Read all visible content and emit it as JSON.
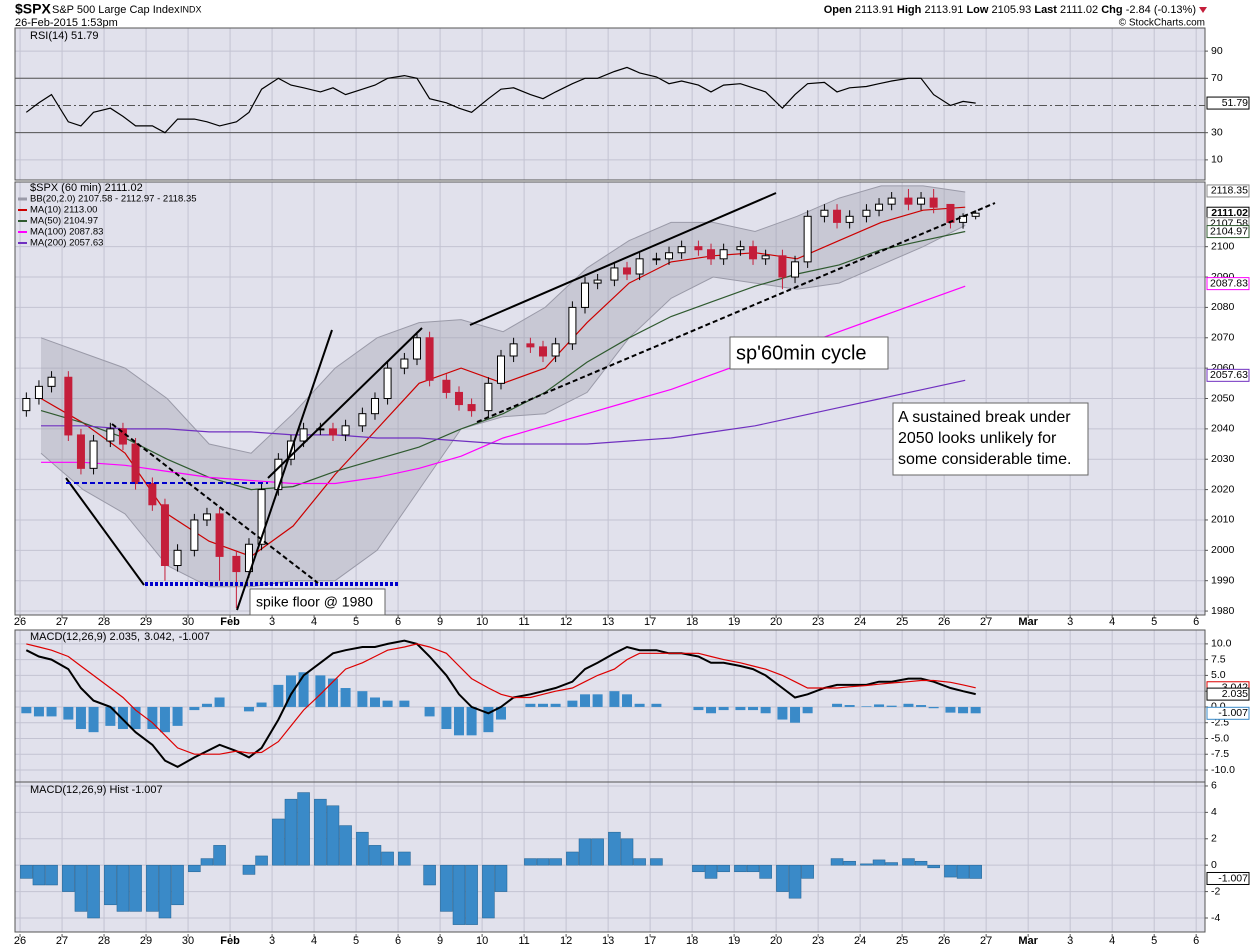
{
  "header": {
    "symbol": "$SPX",
    "name": "S&P 500 Large Cap Index",
    "exchange": "INDX",
    "datetime": "26-Feb-2015 1:53pm",
    "quote": [
      [
        "Open",
        "2113.91"
      ],
      [
        "High",
        "2113.91"
      ],
      [
        "Low",
        "2105.93"
      ],
      [
        "Last",
        "2111.02"
      ],
      [
        "Chg",
        "-2.84 (-0.13%)"
      ]
    ],
    "credit": "© StockCharts.com"
  },
  "chart_data": {
    "type": "candlestick",
    "xlim": [
      -0.12,
      28.21
    ],
    "xticks": [
      {
        "value": 0,
        "label": "26"
      },
      {
        "value": 1,
        "label": "27"
      },
      {
        "value": 2,
        "label": "28"
      },
      {
        "value": 3,
        "label": "29"
      },
      {
        "value": 4,
        "label": "30"
      },
      {
        "value": 5,
        "label": "Feb"
      },
      {
        "value": 6,
        "label": "3"
      },
      {
        "value": 7,
        "label": "4"
      },
      {
        "value": 8,
        "label": "5"
      },
      {
        "value": 9,
        "label": "6"
      },
      {
        "value": 10,
        "label": "9"
      },
      {
        "value": 11,
        "label": "10"
      },
      {
        "value": 12,
        "label": "11"
      },
      {
        "value": 13,
        "label": "12"
      },
      {
        "value": 14,
        "label": "13"
      },
      {
        "value": 15,
        "label": "17"
      },
      {
        "value": 16,
        "label": "18"
      },
      {
        "value": 17,
        "label": "19"
      },
      {
        "value": 18,
        "label": "20"
      },
      {
        "value": 19,
        "label": "23"
      },
      {
        "value": 20,
        "label": "24"
      },
      {
        "value": 21,
        "label": "25"
      },
      {
        "value": 22,
        "label": "26"
      },
      {
        "value": 23,
        "label": "27"
      },
      {
        "value": 24,
        "label": "Mar"
      },
      {
        "value": 25,
        "label": "3"
      },
      {
        "value": 26,
        "label": "4"
      },
      {
        "value": 27,
        "label": "5"
      },
      {
        "value": 28,
        "label": "6"
      }
    ],
    "x": [
      0.15,
      0.45,
      0.75,
      1.15,
      1.45,
      1.75,
      2.15,
      2.45,
      2.75,
      3.15,
      3.45,
      3.75,
      4.15,
      4.45,
      4.75,
      5.15,
      5.45,
      5.75,
      6.15,
      6.45,
      6.75,
      7.15,
      7.45,
      7.75,
      8.15,
      8.45,
      8.75,
      9.15,
      9.45,
      9.75,
      10.15,
      10.45,
      10.75,
      11.15,
      11.45,
      11.75,
      12.15,
      12.45,
      12.75,
      13.15,
      13.45,
      13.75,
      14.15,
      14.45,
      14.75,
      15.15,
      15.45,
      15.75,
      16.15,
      16.45,
      16.75,
      17.15,
      17.45,
      17.75,
      18.15,
      18.45,
      18.75,
      19.15,
      19.45,
      19.75,
      20.15,
      20.45,
      20.75,
      21.15,
      21.45,
      21.75,
      22.15,
      22.45,
      22.75
    ],
    "panels": [
      {
        "type": "line",
        "title": "RSI(14) 51.79",
        "ylim": [
          -4.8,
          107
        ],
        "yticks": [
          10,
          30,
          70,
          90
        ],
        "ref_lines": [
          30,
          70
        ],
        "mid_line": 50,
        "value_box": 51.79,
        "series": [
          {
            "color": "#000000",
            "values": [
              45,
              52,
              58,
              38,
              35,
              45,
              48,
              42,
              35,
              35,
              30,
              40,
              40,
              38,
              35,
              38,
              45,
              62,
              70,
              65,
              63,
              60,
              63,
              58,
              62,
              65,
              70,
              72,
              70,
              55,
              52,
              48,
              45,
              55,
              62,
              63,
              58,
              55,
              60,
              66,
              70,
              70,
              75,
              78,
              74,
              71,
              66,
              68,
              65,
              60,
              65,
              66,
              63,
              60,
              48,
              58,
              66,
              67,
              60,
              63,
              64,
              66,
              68,
              70,
              70,
              58,
              50,
              53,
              51.79
            ]
          }
        ]
      },
      {
        "type": "candlestick",
        "title": "$SPX (60 min) 2111.02",
        "ylim": [
          1978.7,
          2121.3
        ],
        "yticks": [
          1980,
          1990,
          2000,
          2010,
          2020,
          2030,
          2040,
          2050,
          2060,
          2070,
          2080,
          2090,
          2100
        ],
        "up_color": "#000000",
        "down_color": "#c41e3a",
        "open": [
          2046,
          2050,
          2054,
          2057,
          2038,
          2027,
          2036,
          2040,
          2035,
          2022,
          2015,
          1995,
          2000,
          2010,
          2012,
          1998,
          1993,
          2002,
          2020,
          2030,
          2036,
          2040,
          2040,
          2038,
          2041,
          2045,
          2050,
          2060,
          2063,
          2070,
          2056,
          2052,
          2048,
          2046,
          2055,
          2064,
          2068,
          2067,
          2064,
          2068,
          2080,
          2088,
          2089,
          2093,
          2091,
          2096,
          2096,
          2098,
          2100,
          2099,
          2096,
          2099,
          2100,
          2096,
          2097,
          2090,
          2095,
          2110,
          2112,
          2108,
          2110,
          2112,
          2114,
          2116,
          2114,
          2116,
          2113.91,
          2108,
          2110
        ],
        "high": [
          2052,
          2056,
          2059,
          2059,
          2040,
          2038,
          2042,
          2042,
          2037,
          2024,
          2017,
          2002,
          2012,
          2014,
          2014,
          2000,
          2004,
          2022,
          2032,
          2038,
          2042,
          2042,
          2042,
          2043,
          2047,
          2052,
          2062,
          2065,
          2072,
          2072,
          2058,
          2054,
          2050,
          2057,
          2066,
          2070,
          2070,
          2069,
          2070,
          2082,
          2090,
          2091,
          2095,
          2095,
          2098,
          2098,
          2100,
          2102,
          2102,
          2101,
          2101,
          2102,
          2102,
          2099,
          2099,
          2097,
          2112,
          2114,
          2114,
          2112,
          2114,
          2116,
          2118,
          2119,
          2118,
          2119,
          2113.91,
          2111,
          2112
        ],
        "low": [
          2044,
          2048,
          2052,
          2036,
          2025,
          2025,
          2034,
          2033,
          2020,
          2013,
          1990,
          1993,
          1998,
          2008,
          1990,
          1981,
          1991,
          2000,
          2018,
          2028,
          2034,
          2038,
          2036,
          2036,
          2039,
          2043,
          2048,
          2058,
          2061,
          2054,
          2050,
          2046,
          2044,
          2044,
          2053,
          2062,
          2065,
          2062,
          2062,
          2066,
          2078,
          2086,
          2087,
          2089,
          2089,
          2094,
          2094,
          2096,
          2097,
          2094,
          2094,
          2097,
          2094,
          2094,
          2086,
          2088,
          2093,
          2108,
          2106,
          2106,
          2108,
          2110,
          2112,
          2112,
          2112,
          2111,
          2106,
          2105.93,
          2109
        ],
        "close": [
          2050,
          2054,
          2057,
          2038,
          2027,
          2036,
          2040,
          2035,
          2022,
          2015,
          1995,
          2000,
          2010,
          2012,
          1998,
          1993,
          2002,
          2020,
          2030,
          2036,
          2040,
          2040,
          2038,
          2041,
          2045,
          2050,
          2060,
          2063,
          2070,
          2056,
          2052,
          2048,
          2046,
          2055,
          2064,
          2068,
          2067,
          2064,
          2068,
          2080,
          2088,
          2089,
          2093,
          2091,
          2096,
          2096,
          2098,
          2100,
          2099,
          2096,
          2099,
          2100,
          2096,
          2097,
          2090,
          2095,
          2110,
          2112,
          2108,
          2110,
          2112,
          2114,
          2116,
          2114,
          2116,
          2113,
          2108,
          2110,
          2111.02
        ],
        "overlay_x": [
          0.5,
          1.5,
          2.5,
          3.5,
          4.5,
          5.5,
          6.5,
          7.5,
          8.5,
          9.5,
          10.5,
          11.5,
          12.5,
          13.5,
          14.5,
          15.5,
          16.5,
          17.5,
          18.5,
          19.5,
          20.5,
          21.5,
          22.5
        ],
        "band": {
          "name": "BB(20,2.0) 2107.58 - 2112.97 - 2118.35",
          "color": "#9a9aa8",
          "upper": [
            2070,
            2065,
            2060,
            2050,
            2035,
            2032,
            2045,
            2060,
            2070,
            2075,
            2076,
            2072,
            2080,
            2093,
            2102,
            2108,
            2108,
            2105,
            2110,
            2116,
            2120,
            2120,
            2118
          ],
          "lower": [
            2032,
            2020,
            2012,
            1995,
            1988,
            1988,
            1990,
            1990,
            2000,
            2020,
            2040,
            2044,
            2045,
            2052,
            2070,
            2083,
            2090,
            2088,
            2086,
            2088,
            2094,
            2100,
            2107
          ]
        },
        "overlays": [
          {
            "name": "MA(10) 2113.00",
            "color": "#cc0000",
            "values": [
              2050,
              2042,
              2032,
              2012,
              2003,
              1998,
              2008,
              2025,
              2040,
              2055,
              2060,
              2055,
              2060,
              2075,
              2088,
              2095,
              2097,
              2098,
              2096,
              2102,
              2108,
              2112,
              2113
            ]
          },
          {
            "name": "MA(50) 2104.97",
            "color": "#2f5a2f",
            "values": [
              2046,
              2042,
              2037,
              2030,
              2024,
              2020,
              2021,
              2026,
              2030,
              2034,
              2040,
              2045,
              2052,
              2062,
              2070,
              2077,
              2082,
              2087,
              2091,
              2094,
              2099,
              2102,
              2105
            ]
          },
          {
            "name": "MA(100) 2087.83",
            "color": "#ff00ff",
            "values": [
              2029,
              2029,
              2028,
              2026,
              2024,
              2023,
              2022,
              2022,
              2024,
              2027,
              2031,
              2037,
              2041,
              2045,
              2049,
              2053,
              2058,
              2063,
              2067,
              2072,
              2077,
              2082,
              2087
            ]
          },
          {
            "name": "MA(200) 2057.63",
            "color": "#7030c0",
            "values": [
              2041,
              2041,
              2040,
              2040,
              2039,
              2039,
              2038,
              2038,
              2037,
              2037,
              2036,
              2035,
              2035,
              2035,
              2036,
              2037,
              2039,
              2041,
              2044,
              2047,
              2050,
              2053,
              2056
            ]
          }
        ],
        "value_boxes": [
          {
            "value": 2118.35,
            "color": "#888888"
          },
          {
            "value": 2111.02,
            "color": "#000000"
          },
          {
            "value": 2107.58,
            "color": "#888888"
          },
          {
            "value": 2104.97,
            "color": "#2f5a2f"
          },
          {
            "value": 2087.83,
            "color": "#ff00ff"
          },
          {
            "value": 2057.63,
            "color": "#7030c0"
          }
        ],
        "annotations": [
          [
            "spike floor @ 1980"
          ],
          [
            "sp'60min cycle"
          ],
          [
            "A sustained break under",
            "2050 looks unlikely for",
            "some considerable time."
          ]
        ]
      },
      {
        "type": "macd",
        "title_parts": [
          {
            "text": "MACD(12,26,9) 2.035,",
            "color": "#000000"
          },
          {
            "text": "3.042,",
            "color": "#dd0000"
          },
          {
            "text": "-1.007",
            "color": "#3a8ac8"
          }
        ],
        "ylim": [
          -11.9,
          12.2
        ],
        "yticks": [
          {
            "value": -10,
            "label": "-10.0"
          },
          -7.5,
          {
            "value": -5,
            "label": "-5.0"
          },
          -2.5,
          {
            "value": 0,
            "label": "0.0"
          },
          2.5,
          {
            "value": 5,
            "label": "5.0"
          },
          7.5,
          {
            "value": 10,
            "label": "10.0"
          }
        ],
        "series": [
          {
            "color": "#000000",
            "values": [
              9,
              8,
              7.5,
              6,
              3,
              1,
              0,
              -2,
              -4,
              -6,
              -8.5,
              -9.5,
              -8,
              -7,
              -6,
              -7,
              -8,
              -6.5,
              -2,
              2,
              5,
              7,
              8.5,
              9,
              9.5,
              9.5,
              10,
              10.5,
              10,
              8,
              5,
              2,
              0,
              -1,
              0,
              1.5,
              2,
              2.5,
              3,
              4,
              6,
              7,
              8.5,
              9.5,
              9,
              9,
              8.5,
              8.5,
              8,
              7,
              7,
              6.5,
              6,
              5,
              3,
              1.5,
              2,
              3,
              3.5,
              3.5,
              3.5,
              4,
              4,
              4.5,
              4.5,
              4,
              3,
              2.5,
              2.035
            ]
          },
          {
            "color": "#dd0000",
            "values": [
              10,
              9.5,
              9,
              8,
              6.5,
              5,
              3,
              1.5,
              -0.5,
              -2.5,
              -4.5,
              -6.5,
              -7.5,
              -7.5,
              -7.5,
              -7,
              -7.3,
              -7.2,
              -5.5,
              -3,
              -0.5,
              2,
              4,
              6,
              7,
              8,
              9,
              9.5,
              10,
              9.5,
              8.5,
              6.5,
              4.5,
              3,
              2,
              1.5,
              1.5,
              2,
              2.5,
              3,
              4,
              5,
              6,
              7.5,
              8.5,
              8.5,
              8.5,
              8.5,
              8.5,
              8,
              7.5,
              7,
              6.5,
              6,
              5,
              4,
              3,
              3,
              3,
              3.2,
              3.4,
              3.6,
              3.8,
              4,
              4.2,
              4.2,
              3.9,
              3.5,
              3.042
            ]
          }
        ],
        "value_boxes": [
          {
            "value": 3.042,
            "color": "#dd0000"
          },
          {
            "value": 2.035,
            "color": "#000000"
          },
          {
            "value": -1.007,
            "color": "#3a8ac8"
          }
        ]
      },
      {
        "type": "bar",
        "title": "MACD(12,26,9) Hist -1.007",
        "ylim": [
          -5.06,
          6.3
        ],
        "yticks": [
          -4,
          -2,
          0,
          2,
          4,
          6
        ],
        "color": "#3a8ac8",
        "value_box": -1.007,
        "values": [
          -1,
          -1.5,
          -1.5,
          -2,
          -3.5,
          -4,
          -3,
          -3.5,
          -3.5,
          -3.5,
          -4,
          -3,
          -0.5,
          0.5,
          1.5,
          0,
          -0.7,
          0.7,
          3.5,
          5,
          5.5,
          5,
          4.5,
          3,
          2.5,
          1.5,
          1,
          1,
          0,
          -1.5,
          -3.5,
          -4.5,
          -4.5,
          -4,
          -2,
          0,
          0.5,
          0.5,
          0.5,
          1,
          2,
          2,
          2.5,
          2,
          0.5,
          0.5,
          0,
          0,
          -0.5,
          -1,
          -0.5,
          -0.5,
          -0.5,
          -1,
          -2,
          -2.5,
          -1,
          0,
          0.5,
          0.3,
          0.1,
          0.4,
          0.2,
          0.5,
          0.3,
          -0.2,
          -0.9,
          -1,
          -1.007
        ]
      }
    ]
  }
}
